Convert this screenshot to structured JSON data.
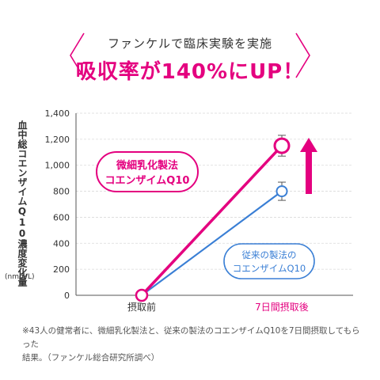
{
  "header": {
    "subtitle": "ファンケルで臨床実験を実施",
    "title": "吸収率が140%にUP！"
  },
  "chart_data": {
    "type": "line",
    "ylabel": "血中総コエンザイムQ10濃度変化量",
    "yunit": "(nmol/L)",
    "categories": [
      "摂取前",
      "7日間摂取後"
    ],
    "ylim": [
      0,
      1400
    ],
    "yticks": [
      0,
      200,
      400,
      600,
      800,
      1000,
      1200,
      1400
    ],
    "ytick_labels": [
      "0",
      "200",
      "400",
      "600",
      "800",
      "1,000",
      "1,200",
      "1,400"
    ],
    "grid": true,
    "series": [
      {
        "name": "微細乳化製法コエンザイムQ10",
        "label_lines": [
          "微細乳化製法",
          "コエンザイムQ10"
        ],
        "color": "#e4007f",
        "values": [
          0,
          1150
        ],
        "error": [
          0,
          80
        ]
      },
      {
        "name": "従来の製法のコエンザイムQ10",
        "label_lines": [
          "従来の製法の",
          "コエンザイムQ10"
        ],
        "color": "#3a7fd5",
        "values": [
          0,
          800
        ],
        "error": [
          0,
          70
        ]
      }
    ],
    "arrow_color": "#e4007f"
  },
  "footnote": {
    "line1": "※43人の健常者に、微細乳化製法と、従来の製法のコエンザイムQ10を7日間摂取してもらった",
    "line2": "結果。（ファンケル総合研究所調べ）"
  }
}
